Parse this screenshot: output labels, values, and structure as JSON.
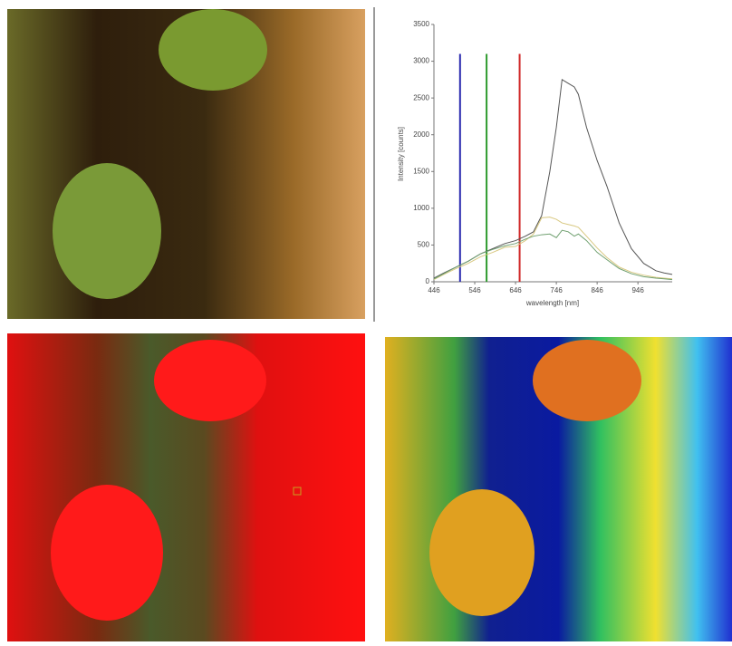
{
  "chart_data": {
    "type": "line",
    "x_label": "wavelength [nm]",
    "y_label": "Intensity [counts]",
    "xlim": [
      446,
      1030
    ],
    "ylim": [
      0,
      3500
    ],
    "xticks": [
      446,
      546,
      646,
      746,
      846,
      946
    ],
    "yticks": [
      0,
      500,
      1000,
      1500,
      2000,
      2500,
      3000,
      3500
    ],
    "x": [
      446,
      470,
      500,
      530,
      560,
      590,
      620,
      646,
      670,
      690,
      710,
      730,
      746,
      760,
      775,
      790,
      800,
      820,
      846,
      870,
      900,
      930,
      960,
      990,
      1010,
      1030
    ],
    "series": [
      {
        "color": "#555555",
        "values": [
          50,
          120,
          200,
          280,
          380,
          450,
          520,
          560,
          620,
          680,
          900,
          1500,
          2100,
          2750,
          2700,
          2650,
          2550,
          2100,
          1650,
          1300,
          800,
          450,
          250,
          150,
          120,
          100
        ]
      },
      {
        "color": "#d8c880",
        "values": [
          30,
          100,
          180,
          250,
          340,
          400,
          470,
          480,
          560,
          650,
          870,
          880,
          850,
          800,
          780,
          760,
          740,
          620,
          460,
          330,
          200,
          130,
          90,
          60,
          50,
          40
        ]
      },
      {
        "color": "#70a070",
        "values": [
          40,
          110,
          200,
          280,
          380,
          440,
          490,
          520,
          580,
          620,
          640,
          650,
          600,
          700,
          680,
          620,
          650,
          560,
          400,
          300,
          180,
          110,
          70,
          50,
          40,
          30
        ]
      }
    ],
    "markers": [
      {
        "x": 510,
        "top": 3100,
        "color": "#2c2cb0"
      },
      {
        "x": 575,
        "top": 3100,
        "color": "#2e9a2e"
      },
      {
        "x": 656,
        "top": 3100,
        "color": "#d02828"
      }
    ]
  }
}
